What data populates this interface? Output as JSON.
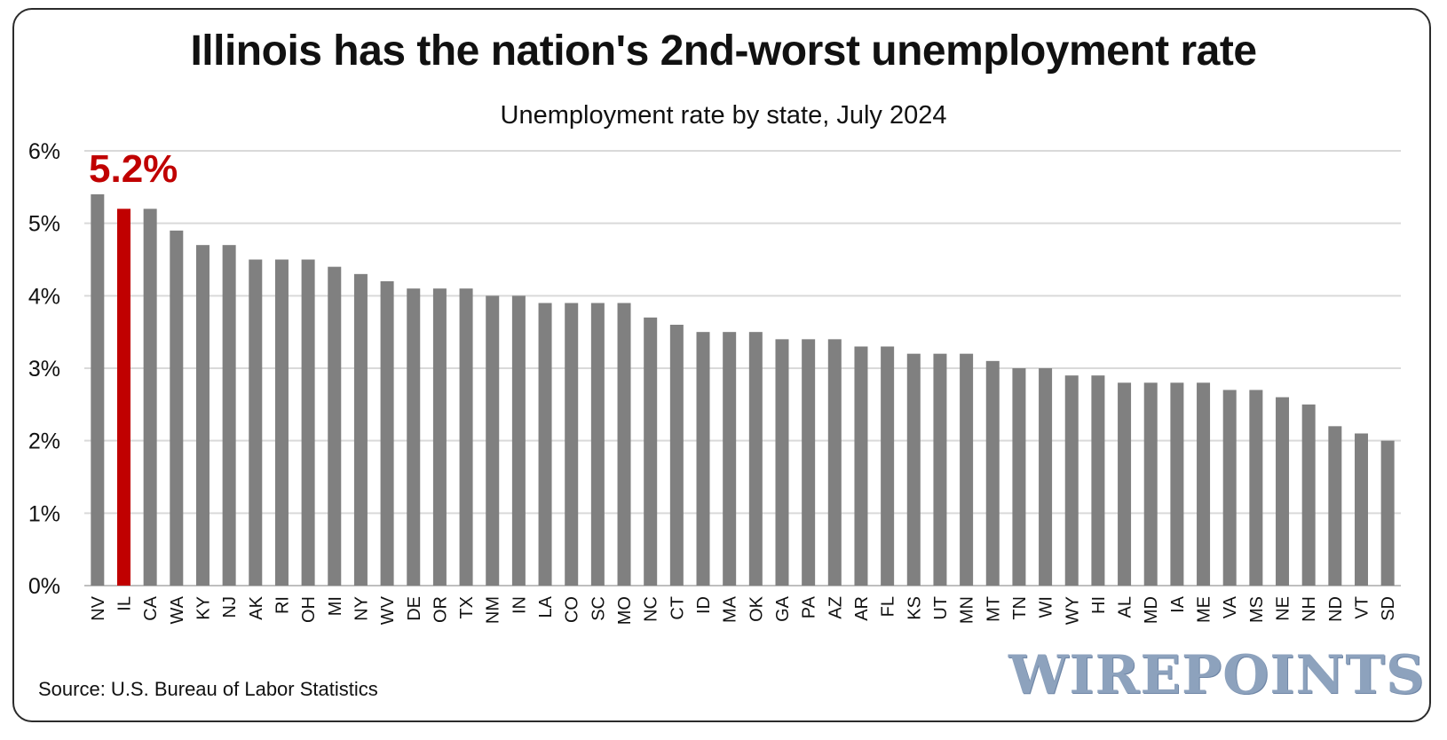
{
  "title": "Illinois has the nation's 2nd-worst unemployment rate",
  "subtitle": "Unemployment rate by state, July 2024",
  "source": "Source: U.S. Bureau of Labor Statistics",
  "brand": "WIREPOINTS",
  "colors": {
    "bar": "#808080",
    "highlight": "#c00000",
    "grid": "#d9d9d9"
  },
  "chart_data": {
    "type": "bar",
    "categories": [
      "NV",
      "IL",
      "CA",
      "WA",
      "KY",
      "NJ",
      "AK",
      "RI",
      "OH",
      "MI",
      "NY",
      "WV",
      "DE",
      "OR",
      "TX",
      "NM",
      "IN",
      "LA",
      "CO",
      "SC",
      "MO",
      "NC",
      "CT",
      "ID",
      "MA",
      "OK",
      "GA",
      "PA",
      "AZ",
      "AR",
      "FL",
      "KS",
      "UT",
      "MN",
      "MT",
      "TN",
      "WI",
      "WY",
      "HI",
      "AL",
      "MD",
      "IA",
      "ME",
      "VA",
      "MS",
      "NE",
      "NH",
      "ND",
      "VT",
      "SD"
    ],
    "values": [
      5.4,
      5.2,
      5.2,
      4.9,
      4.7,
      4.7,
      4.5,
      4.5,
      4.5,
      4.4,
      4.3,
      4.2,
      4.1,
      4.1,
      4.1,
      4.0,
      4.0,
      3.9,
      3.9,
      3.9,
      3.9,
      3.7,
      3.6,
      3.5,
      3.5,
      3.5,
      3.4,
      3.4,
      3.4,
      3.3,
      3.3,
      3.2,
      3.2,
      3.2,
      3.1,
      3.0,
      3.0,
      2.9,
      2.9,
      2.8,
      2.8,
      2.8,
      2.8,
      2.7,
      2.7,
      2.6,
      2.5,
      2.2,
      2.1,
      2.0
    ],
    "highlight_category": "IL",
    "highlight_label": "5.2%",
    "ylim": [
      0,
      6
    ],
    "yticks": [
      0,
      1,
      2,
      3,
      4,
      5,
      6
    ],
    "ytick_labels": [
      "0%",
      "1%",
      "2%",
      "3%",
      "4%",
      "5%",
      "6%"
    ],
    "xlabel": "",
    "ylabel": "",
    "grid": true,
    "legend": "none"
  }
}
